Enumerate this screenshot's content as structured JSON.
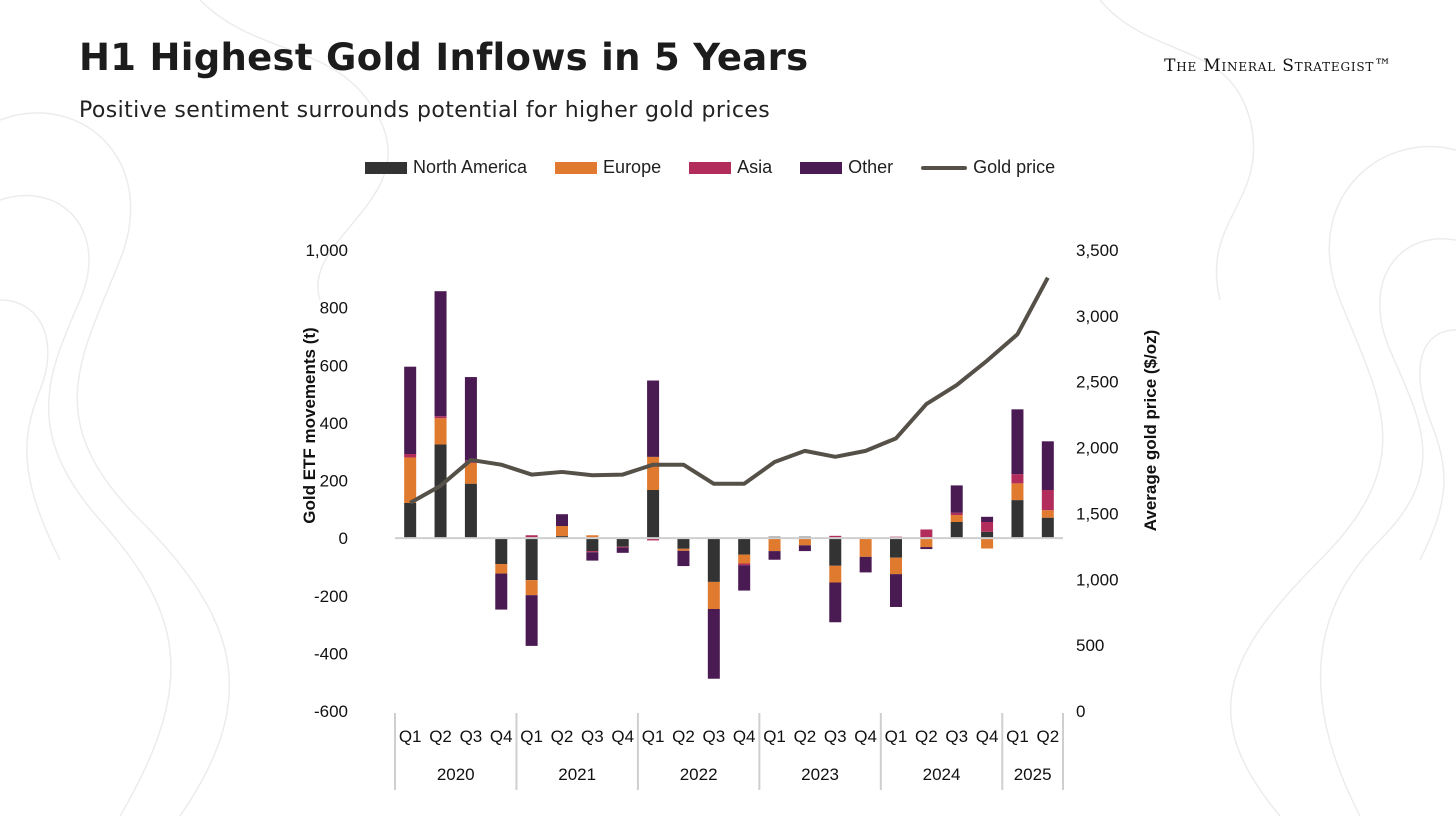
{
  "header": {
    "title": "H1 Highest Gold Inflows in 5 Years",
    "subtitle": "Positive sentiment surrounds potential for higher gold prices",
    "brand": "The Mineral Strategist™"
  },
  "colors": {
    "north_america": "#333333",
    "europe": "#e07a2e",
    "asia": "#b22d5b",
    "other": "#4a1a52",
    "gold_price": "#555048"
  },
  "chart_data": {
    "type": "bar",
    "stacked": true,
    "title": "H1 Highest Gold Inflows in 5 Years",
    "quarters": [
      "Q1",
      "Q2",
      "Q3",
      "Q4",
      "Q1",
      "Q2",
      "Q3",
      "Q4",
      "Q1",
      "Q2",
      "Q3",
      "Q4",
      "Q1",
      "Q2",
      "Q3",
      "Q4",
      "Q1",
      "Q2",
      "Q3",
      "Q4",
      "Q1",
      "Q2"
    ],
    "years": [
      {
        "label": "2020",
        "count": 4
      },
      {
        "label": "2021",
        "count": 4
      },
      {
        "label": "2022",
        "count": 4
      },
      {
        "label": "2023",
        "count": 4
      },
      {
        "label": "2024",
        "count": 4
      },
      {
        "label": "2025",
        "count": 2
      }
    ],
    "ylabel": "Gold ETF movements (t)",
    "y2label": "Average gold price ($/oz)",
    "ylim": [
      -600,
      1000
    ],
    "y2lim": [
      0,
      3500
    ],
    "yticks": [
      "1,000",
      "800",
      "600",
      "400",
      "200",
      "0",
      "-200",
      "-400",
      "-600"
    ],
    "ytick_values": [
      1000,
      800,
      600,
      400,
      200,
      0,
      -200,
      -400,
      -600
    ],
    "y2ticks": [
      "3,500",
      "3,000",
      "2,500",
      "2,000",
      "1,500",
      "1,000",
      "500",
      "0"
    ],
    "y2tick_values": [
      3500,
      3000,
      2500,
      2000,
      1500,
      1000,
      500,
      0
    ],
    "legend_position": "top",
    "series": [
      {
        "name": "North America",
        "values": [
          122,
          325,
          189,
          -90,
          -146,
          7,
          -45,
          -30,
          167,
          -37,
          -152,
          -57,
          5,
          5,
          -96,
          0,
          -68,
          -3,
          56,
          22,
          132,
          71
        ]
      },
      {
        "name": "Europe",
        "values": [
          158,
          91,
          72,
          -33,
          -52,
          35,
          10,
          0,
          115,
          -7,
          -94,
          -31,
          -45,
          -25,
          -58,
          -65,
          -57,
          -28,
          24,
          -36,
          58,
          26
        ]
      },
      {
        "name": "Asia",
        "values": [
          12,
          7,
          9,
          0,
          10,
          0,
          -4,
          -3,
          -8,
          0,
          0,
          -6,
          0,
          0,
          8,
          0,
          5,
          30,
          8,
          34,
          32,
          70
        ]
      },
      {
        "name": "Other",
        "values": [
          303,
          434,
          289,
          -125,
          -176,
          41,
          -29,
          -18,
          265,
          -53,
          -242,
          -88,
          -30,
          -20,
          -138,
          -54,
          -114,
          -7,
          95,
          18,
          225,
          169
        ]
      }
    ],
    "line": {
      "name": "Gold price",
      "values": [
        1580,
        1710,
        1906,
        1870,
        1795,
        1815,
        1790,
        1795,
        1870,
        1870,
        1725,
        1725,
        1890,
        1975,
        1930,
        1975,
        2070,
        2330,
        2475,
        2660,
        2860,
        3290
      ]
    }
  }
}
